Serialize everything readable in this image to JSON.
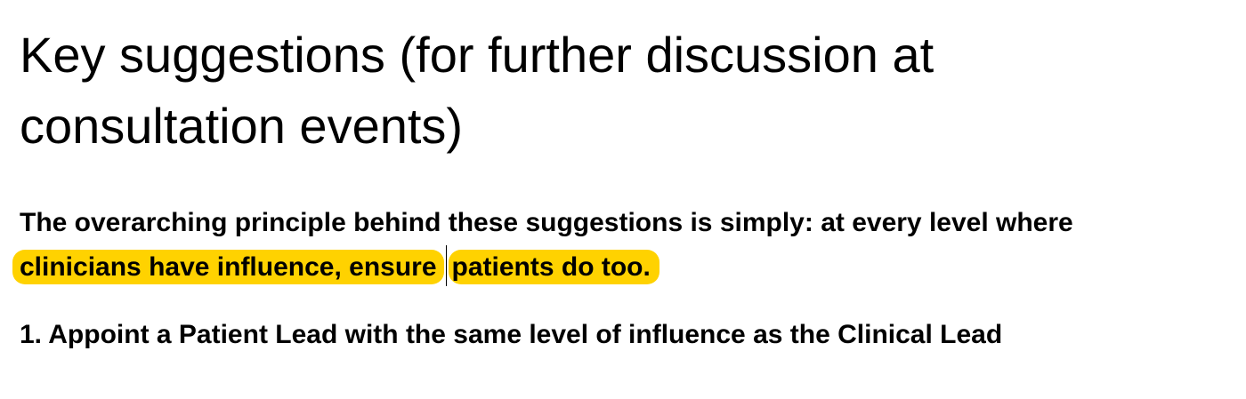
{
  "heading": {
    "line1": "Key suggestions (for further discussion at",
    "line2": "consultation events)"
  },
  "principle": {
    "intro": "The overarching principle behind these suggestions is simply: at every level where",
    "highlight_part1": "clinicians have influence, ensure",
    "highlight_part2": "patients do too.",
    "highlight_color": "#ffd200"
  },
  "suggestions": [
    {
      "number": "1.",
      "text": "Appoint a Patient Lead with the same level of influence as the Clinical Lead"
    }
  ]
}
